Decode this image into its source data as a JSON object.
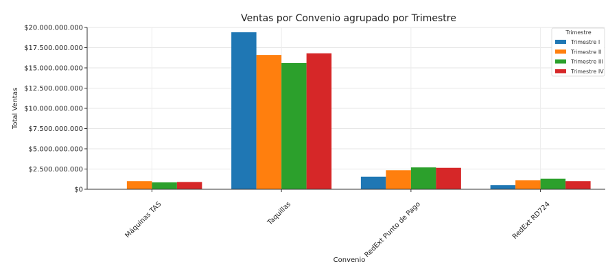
{
  "chart_data": {
    "type": "bar",
    "title": "Ventas por Convenio agrupado por Trimestre",
    "xlabel": "Convenio",
    "ylabel": "Total Ventas",
    "categories": [
      "Máquinas TAS",
      "Taquillas",
      "RedExt Punto de Pago",
      "RedExt RD724"
    ],
    "series": [
      {
        "name": "Trimestre I",
        "color": "#1f77b4",
        "values": [
          0,
          19400000000,
          1550000000,
          500000000
        ]
      },
      {
        "name": "Trimestre II",
        "color": "#ff7f0e",
        "values": [
          1000000000,
          16600000000,
          2350000000,
          1100000000
        ]
      },
      {
        "name": "Trimestre III",
        "color": "#2ca02c",
        "values": [
          850000000,
          15600000000,
          2700000000,
          1300000000
        ]
      },
      {
        "name": "Trimestre IV",
        "color": "#d62728",
        "values": [
          900000000,
          16800000000,
          2650000000,
          1000000000
        ]
      }
    ],
    "ylim": [
      0,
      20000000000
    ],
    "yticks": [
      {
        "value": 0,
        "label": "$0"
      },
      {
        "value": 2500000000,
        "label": "$2.500.000.000"
      },
      {
        "value": 5000000000,
        "label": "$5.000.000.000"
      },
      {
        "value": 7500000000,
        "label": "$7.500.000.000"
      },
      {
        "value": 10000000000,
        "label": "$10.000.000.000"
      },
      {
        "value": 12500000000,
        "label": "$12.500.000.000"
      },
      {
        "value": 15000000000,
        "label": "$15.000.000.000"
      },
      {
        "value": 17500000000,
        "label": "$17.500.000.000"
      },
      {
        "value": 20000000000,
        "label": "$20.000.000.000"
      }
    ],
    "legend": {
      "title": "Trimestre",
      "placement": "top-right"
    },
    "grid": true
  }
}
